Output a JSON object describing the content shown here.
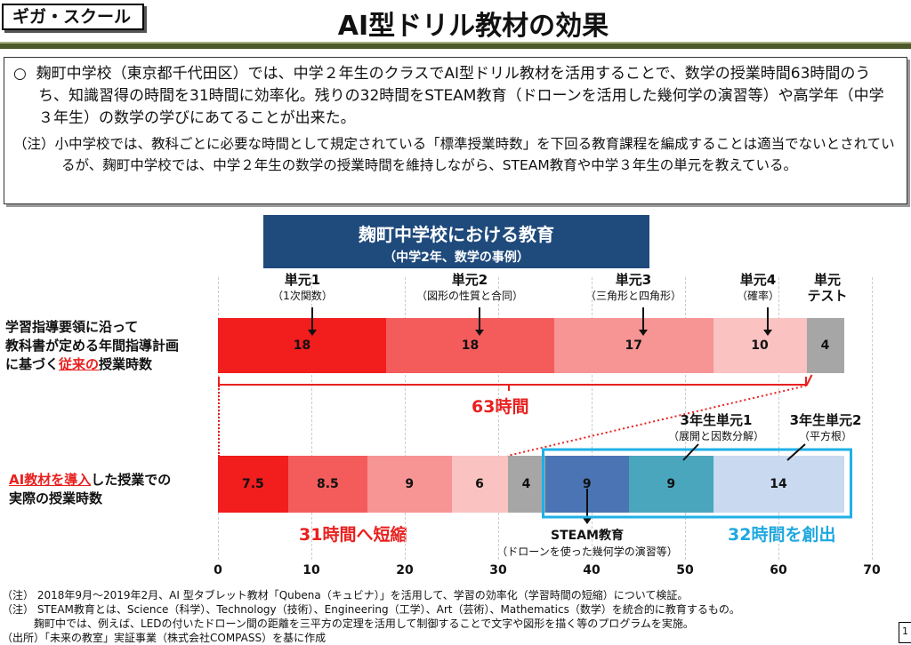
{
  "header": {
    "tag": "ギガ・スクール",
    "title": "AI型ドリル教材の効果"
  },
  "summary": {
    "bullet": "○",
    "text": "麹町中学校（東京都千代田区）では、中学２年生のクラスでAI型ドリル教材を活用することで、数学の授業時間63時間のうち、知識習得の時間を31時間に効率化。残りの32時間をSTEAM教育（ドローンを活用した幾何学の演習等）や高学年（中学３年生）の数学の学びにあてることが出来た。",
    "note": "（注）小中学校では、教科ごとに必要な時間として規定されている「標準授業時数」を下回る教育課程を編成することは適当でないとされているが、麹町中学校では、中学２年生の数学の授業時間を維持しながら、STEAM教育や中学３年生の単元を教えている。"
  },
  "chart_header": {
    "title": "麹町中学校における教育",
    "subtitle": "（中学2年、数学の事例）"
  },
  "chart_data": {
    "type": "bar",
    "orientation": "horizontal",
    "stacked": true,
    "xlim": [
      0,
      70
    ],
    "xticks": [
      "0",
      "10",
      "20",
      "30",
      "40",
      "50",
      "60",
      "70"
    ],
    "grid": true,
    "rows": [
      {
        "label_pre": "学習指導要領に沿って\n教科書が定める年間指導計画\nに基づく",
        "label_em": "従来の",
        "label_post": "授業時数",
        "values": [
          18,
          18,
          17,
          10,
          4
        ],
        "colors": [
          "#f21d1d",
          "#f45c5c",
          "#f79494",
          "#fbc2c2",
          "#a6a6a6"
        ]
      },
      {
        "label_em": "AI教材を導入",
        "label_post": "した授業での\n実際の授業時数",
        "values": [
          7.5,
          8.5,
          9,
          6,
          4,
          9,
          9,
          14
        ],
        "colors": [
          "#f21d1d",
          "#f45c5c",
          "#f79494",
          "#fbc2c2",
          "#a6a6a6",
          "#4a74b4",
          "#4aa6bd",
          "#c9d9f0"
        ]
      }
    ],
    "annotations": {
      "units": [
        {
          "h": "単元1",
          "s": "（1次関数）"
        },
        {
          "h": "単元2",
          "s": "（図形の性質と合同）"
        },
        {
          "h": "単元3",
          "s": "（三角形と四角形）"
        },
        {
          "h": "単元4",
          "s": "（確率）"
        },
        {
          "h": "単元\nテスト",
          "s": ""
        }
      ],
      "grade3": [
        {
          "h": "3年生単元1",
          "s": "（展開と因数分解）"
        },
        {
          "h": "3年生単元2",
          "s": "（平方根）"
        }
      ],
      "steam": {
        "h": "STEAM教育",
        "s": "（ドローンを使った幾何学の演習等）"
      },
      "total": "63時間",
      "shortened": "31時間へ短縮",
      "created": "32時間を創出"
    }
  },
  "footnotes": [
    "（注） 2018年9月～2019年2月、AI 型タブレット教材「Qubena（キュビナ）」を活用して、学習の効率化（学習時間の短縮）について検証。",
    "（注） STEAM教育とは、Science（科学）、Technology（技術）、Engineering（工学）、Art（芸術）、Mathematics（数学）を統合的に教育するもの。",
    "　　　麹町中では、例えば、LEDの付いたドローン間の距離を三平方の定理を活用して制御することで文字や図形を描く等のプログラムを実施。",
    "（出所）「未来の教室」実証事業（株式会社COMPASS）を基に作成"
  ],
  "page_number": "1"
}
